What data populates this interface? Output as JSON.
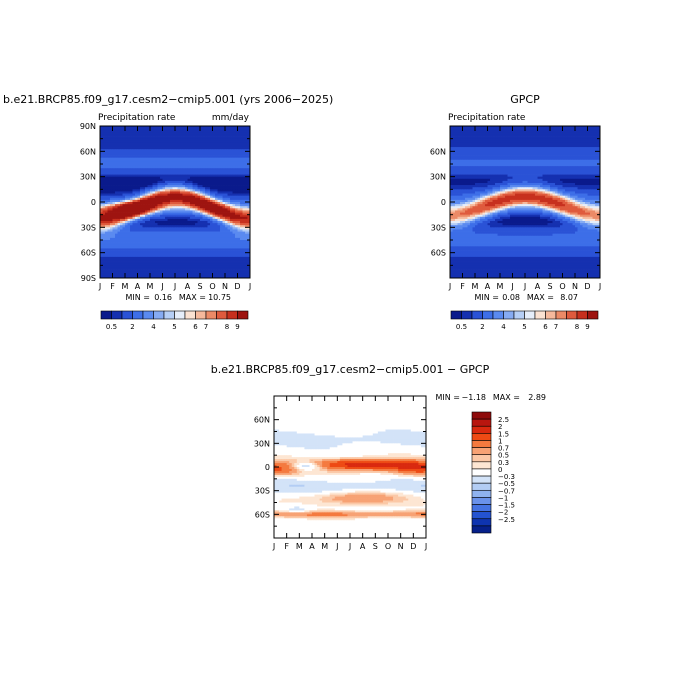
{
  "chart_data": [
    {
      "type": "heatmap",
      "title": "b.e21.BRCP85.f09_g17.cesm2−cmip5.001 (yrs 2006−2025)",
      "subtitle": "Precipitation rate",
      "units": "mm/day",
      "x_ticks": [
        "J",
        "F",
        "M",
        "A",
        "M",
        "J",
        "J",
        "A",
        "S",
        "O",
        "N",
        "D",
        "J"
      ],
      "y_ticks": [
        "90N",
        "60N",
        "30N",
        "0",
        "30S",
        "60S",
        "90S"
      ],
      "ylim": [
        -90,
        90
      ],
      "min_label": "MIN =",
      "min_value": "0.16",
      "max_label": "MAX =",
      "max_value": "10.75",
      "legend_placement": "bottom",
      "colorbar_labels": [
        "0.5",
        "2",
        "4",
        "5",
        "6",
        "7",
        "8",
        "9"
      ]
    },
    {
      "type": "heatmap",
      "title": "GPCP",
      "subtitle": "Precipitation rate",
      "x_ticks": [
        "J",
        "F",
        "M",
        "A",
        "M",
        "J",
        "J",
        "A",
        "S",
        "O",
        "N",
        "D",
        "J"
      ],
      "y_ticks": [
        "60N",
        "30N",
        "0",
        "30S",
        "60S"
      ],
      "ylim": [
        -90,
        90
      ],
      "min_label": "MIN =",
      "min_value": "0.08",
      "max_label": "MAX =",
      "max_value": "8.07",
      "legend_placement": "bottom",
      "colorbar_labels": [
        "0.5",
        "2",
        "4",
        "5",
        "6",
        "7",
        "8",
        "9"
      ]
    },
    {
      "type": "heatmap",
      "title": "b.e21.BRCP85.f09_g17.cesm2−cmip5.001 − GPCP",
      "x_ticks": [
        "J",
        "F",
        "M",
        "A",
        "M",
        "J",
        "J",
        "A",
        "S",
        "O",
        "N",
        "D",
        "J"
      ],
      "y_ticks": [
        "60N",
        "30N",
        "0",
        "30S",
        "60S"
      ],
      "ylim": [
        -90,
        90
      ],
      "min_label": "MIN =",
      "min_value": "−1.18",
      "max_label": "MAX =",
      "max_value": "2.89",
      "legend_placement": "right",
      "colorbar_labels": [
        "2.5",
        "2",
        "1.5",
        "1",
        "0.7",
        "0.5",
        "0.3",
        "0",
        "−0.3",
        "−0.5",
        "−0.7",
        "−1",
        "−1.5",
        "−2",
        "−2.5"
      ]
    }
  ],
  "colors": {
    "abs_scale": [
      "#0a1a8c",
      "#1530b0",
      "#2a52d6",
      "#3d6ee8",
      "#5a8af0",
      "#86abf2",
      "#b6cff6",
      "#e6eefa",
      "#fbe2d2",
      "#f6b99c",
      "#ec8a66",
      "#df5a3d",
      "#c7301e",
      "#9e1410"
    ],
    "diff_scale": [
      "#8e0b0b",
      "#b8160f",
      "#d9290f",
      "#ee4a14",
      "#f47a3f",
      "#f7a274",
      "#fbc8a6",
      "#fde6d3",
      "#ffffff",
      "#d3e3f8",
      "#b3cdf4",
      "#8fb2ef",
      "#6a92ea",
      "#4573e2",
      "#2453d0",
      "#0e34b0",
      "#06208a"
    ]
  }
}
